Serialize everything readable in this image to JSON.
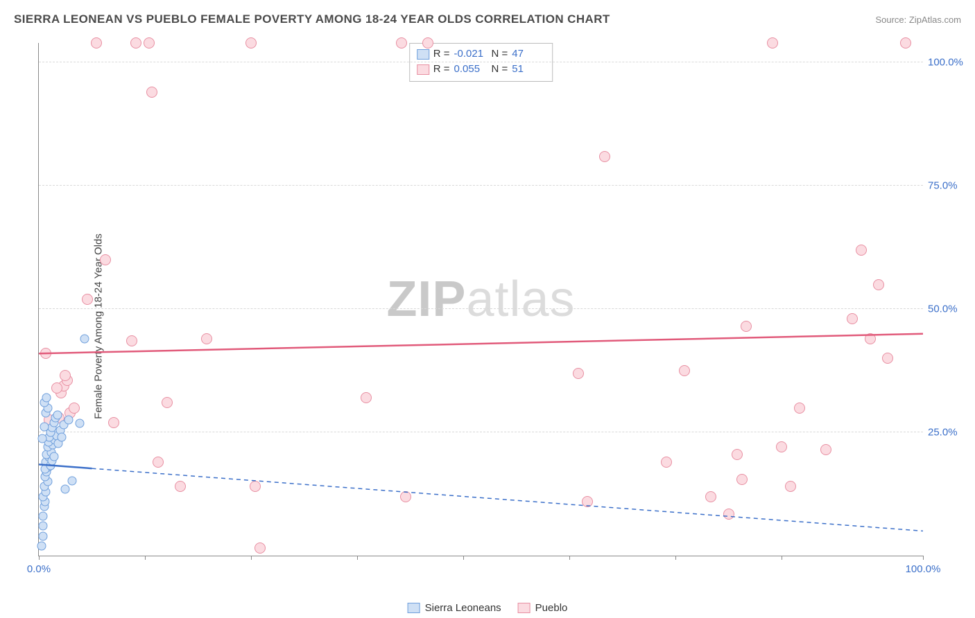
{
  "header": {
    "title": "SIERRA LEONEAN VS PUEBLO FEMALE POVERTY AMONG 18-24 YEAR OLDS CORRELATION CHART",
    "source": "Source: ZipAtlas.com"
  },
  "axes": {
    "y_title": "Female Poverty Among 18-24 Year Olds",
    "xlim": [
      0,
      100
    ],
    "ylim": [
      0,
      104
    ],
    "xticks": [
      0,
      12,
      24,
      36,
      48,
      60,
      72,
      84,
      100
    ],
    "xtick_labels": {
      "0": "0.0%",
      "100": "100.0%"
    },
    "yticks": [
      25,
      50,
      75,
      100
    ],
    "ytick_labels": {
      "25": "25.0%",
      "50": "50.0%",
      "75": "75.0%",
      "100": "100.0%"
    },
    "grid_color": "#d8d8d8"
  },
  "series": {
    "a": {
      "label": "Sierra Leoneans",
      "color_fill": "#cfe0f5",
      "color_stroke": "#6f9fdc",
      "r": "-0.021",
      "n": "47",
      "trend": {
        "y_at_x0": 18.5,
        "y_at_x100": 5,
        "color": "#3b6fc9",
        "dash": true,
        "solid_until_x": 6
      },
      "points": [
        {
          "x": 0.3,
          "y": 2
        },
        {
          "x": 0.5,
          "y": 6
        },
        {
          "x": 0.5,
          "y": 8
        },
        {
          "x": 0.6,
          "y": 10
        },
        {
          "x": 0.7,
          "y": 11
        },
        {
          "x": 0.5,
          "y": 12
        },
        {
          "x": 0.8,
          "y": 13
        },
        {
          "x": 0.6,
          "y": 14
        },
        {
          "x": 1.0,
          "y": 15
        },
        {
          "x": 0.7,
          "y": 16
        },
        {
          "x": 0.9,
          "y": 17
        },
        {
          "x": 1.1,
          "y": 18
        },
        {
          "x": 0.8,
          "y": 19
        },
        {
          "x": 1.2,
          "y": 20
        },
        {
          "x": 0.9,
          "y": 20.5
        },
        {
          "x": 1.4,
          "y": 21
        },
        {
          "x": 1.0,
          "y": 22
        },
        {
          "x": 1.6,
          "y": 22.5
        },
        {
          "x": 1.1,
          "y": 23
        },
        {
          "x": 1.8,
          "y": 23.5
        },
        {
          "x": 1.2,
          "y": 24
        },
        {
          "x": 2.0,
          "y": 24.3
        },
        {
          "x": 1.3,
          "y": 25
        },
        {
          "x": 2.4,
          "y": 25.5
        },
        {
          "x": 1.5,
          "y": 26
        },
        {
          "x": 2.8,
          "y": 26.5
        },
        {
          "x": 1.7,
          "y": 27
        },
        {
          "x": 3.4,
          "y": 27.5
        },
        {
          "x": 1.9,
          "y": 28
        },
        {
          "x": 2.1,
          "y": 28.5
        },
        {
          "x": 0.8,
          "y": 29
        },
        {
          "x": 1.0,
          "y": 30
        },
        {
          "x": 0.6,
          "y": 31
        },
        {
          "x": 0.9,
          "y": 32
        },
        {
          "x": 0.7,
          "y": 17.5
        },
        {
          "x": 1.3,
          "y": 18.3
        },
        {
          "x": 1.5,
          "y": 19.2
        },
        {
          "x": 1.7,
          "y": 20.1
        },
        {
          "x": 0.4,
          "y": 23.8
        },
        {
          "x": 0.6,
          "y": 26.2
        },
        {
          "x": 2.2,
          "y": 22.8
        },
        {
          "x": 2.6,
          "y": 24.1
        },
        {
          "x": 3.0,
          "y": 13.5
        },
        {
          "x": 3.8,
          "y": 15.2
        },
        {
          "x": 4.6,
          "y": 26.8
        },
        {
          "x": 5.2,
          "y": 44
        },
        {
          "x": 0.5,
          "y": 4
        }
      ]
    },
    "b": {
      "label": "Pueblo",
      "color_fill": "#fbdbe1",
      "color_stroke": "#e88fa2",
      "r": "0.055",
      "n": "51",
      "trend": {
        "y_at_x0": 41,
        "y_at_x100": 45,
        "color": "#e15a7a",
        "dash": false
      },
      "points": [
        {
          "x": 0.8,
          "y": 41
        },
        {
          "x": 2.5,
          "y": 33
        },
        {
          "x": 2.8,
          "y": 34.5
        },
        {
          "x": 3.2,
          "y": 35.5
        },
        {
          "x": 3.5,
          "y": 29
        },
        {
          "x": 5.5,
          "y": 52
        },
        {
          "x": 6.5,
          "y": 104
        },
        {
          "x": 7.5,
          "y": 60
        },
        {
          "x": 8.5,
          "y": 27
        },
        {
          "x": 10.5,
          "y": 43.5
        },
        {
          "x": 11,
          "y": 104
        },
        {
          "x": 12.5,
          "y": 104
        },
        {
          "x": 12.8,
          "y": 94
        },
        {
          "x": 13.5,
          "y": 19
        },
        {
          "x": 14.5,
          "y": 31
        },
        {
          "x": 16,
          "y": 14
        },
        {
          "x": 19,
          "y": 44
        },
        {
          "x": 24,
          "y": 104
        },
        {
          "x": 24.5,
          "y": 14
        },
        {
          "x": 25,
          "y": 1.5
        },
        {
          "x": 37,
          "y": 32
        },
        {
          "x": 41,
          "y": 104
        },
        {
          "x": 41.5,
          "y": 12
        },
        {
          "x": 44,
          "y": 104
        },
        {
          "x": 61,
          "y": 37
        },
        {
          "x": 62,
          "y": 11
        },
        {
          "x": 64,
          "y": 81
        },
        {
          "x": 71,
          "y": 19
        },
        {
          "x": 73,
          "y": 37.5
        },
        {
          "x": 76,
          "y": 12
        },
        {
          "x": 78,
          "y": 8.5
        },
        {
          "x": 79,
          "y": 20.5
        },
        {
          "x": 79.5,
          "y": 15.5
        },
        {
          "x": 80,
          "y": 46.5
        },
        {
          "x": 83,
          "y": 104
        },
        {
          "x": 84,
          "y": 22
        },
        {
          "x": 85,
          "y": 14
        },
        {
          "x": 86,
          "y": 30
        },
        {
          "x": 89,
          "y": 21.5
        },
        {
          "x": 92,
          "y": 48
        },
        {
          "x": 93,
          "y": 62
        },
        {
          "x": 94,
          "y": 44
        },
        {
          "x": 95,
          "y": 55
        },
        {
          "x": 96,
          "y": 40
        },
        {
          "x": 98,
          "y": 104
        },
        {
          "x": 3.0,
          "y": 36.5
        },
        {
          "x": 4.0,
          "y": 30
        },
        {
          "x": 1.2,
          "y": 27.5
        },
        {
          "x": 1.5,
          "y": 23
        },
        {
          "x": 2.0,
          "y": 34
        },
        {
          "x": 2.3,
          "y": 28
        }
      ]
    }
  },
  "stats_box": {
    "r_label": "R =",
    "n_label": "N ="
  },
  "watermark": {
    "bold": "ZIP",
    "light": "atlas"
  },
  "colors": {
    "background": "#ffffff",
    "axis": "#888888",
    "tick_text": "#3b6fc9",
    "title_text": "#4a4a4a"
  }
}
